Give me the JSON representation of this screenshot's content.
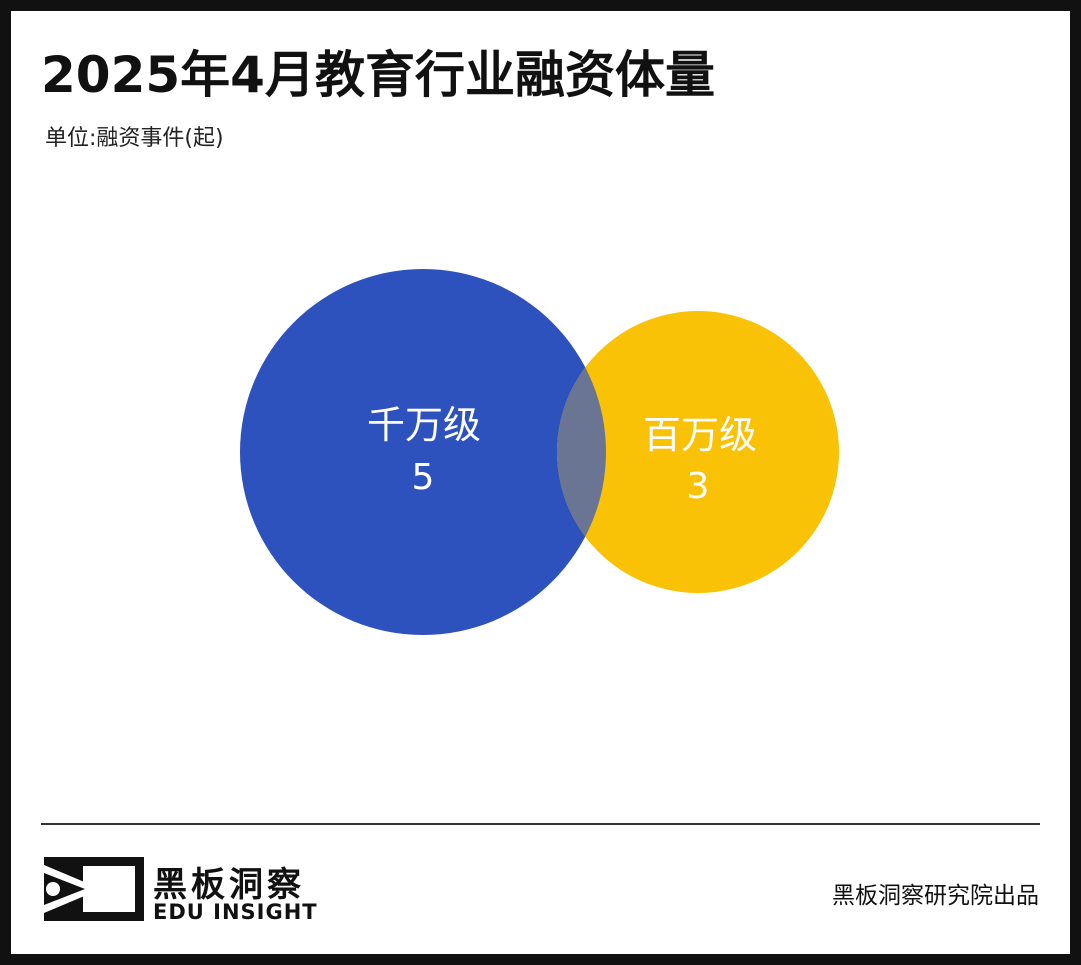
{
  "title": "2025年4月教育行业融资体量",
  "unit_label": "单位:融资事件(起)",
  "chart_data": {
    "type": "venn",
    "title": "2025年4月教育行业融资体量",
    "unit": "融资事件(起)",
    "sets": [
      {
        "name": "千万级",
        "value": 5,
        "color": "#2d51bd"
      },
      {
        "name": "百万级",
        "value": 3,
        "color": "#f9c206"
      }
    ],
    "overlap_color": "#6a7493"
  },
  "footer": {
    "logo_cn": "黑板洞察",
    "logo_en": "EDU INSIGHT",
    "credit": "黑板洞察研究院出品"
  },
  "colors": {
    "frame": "#111111",
    "background": "#ffffff",
    "label_text": "#ffffff"
  }
}
